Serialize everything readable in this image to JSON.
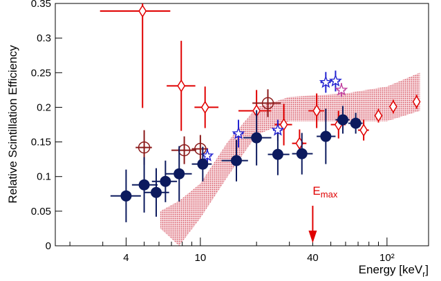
{
  "chart_data": {
    "type": "scatter",
    "ylabel": "Relative Scintillation Efficiency",
    "xlabel": {
      "main": "Energy [keV",
      "sub": "r",
      "close": "]"
    },
    "xlog": true,
    "xlim": [
      1.67,
      167
    ],
    "ylim": [
      0,
      0.35
    ],
    "xticks": [
      4,
      10,
      40,
      {
        "value": 100,
        "label": "10²"
      }
    ],
    "xminorticks": [
      2,
      3,
      5,
      6,
      7,
      8,
      9,
      20,
      30,
      50,
      60,
      70,
      80,
      90
    ],
    "yticks": [
      0,
      0.05,
      0.1,
      0.15,
      0.2,
      0.25,
      0.3,
      0.35
    ],
    "band": {
      "color": "#d03a4a",
      "x": [
        6.1,
        7.7,
        10,
        14,
        20,
        30,
        60,
        100,
        150
      ],
      "upper": [
        0.05,
        0.065,
        0.09,
        0.15,
        0.2,
        0.215,
        0.22,
        0.23,
        0.25
      ],
      "lower": [
        0.025,
        0,
        0.04,
        0.1,
        0.16,
        0.18,
        0.18,
        0.18,
        0.195
      ]
    },
    "series": [
      {
        "marker": "diamond-open",
        "color": "#e00000",
        "x": [
          4.9,
          7.9,
          10.6,
          20,
          28,
          34,
          42,
          55,
          75,
          90,
          108,
          144
        ],
        "values": [
          0.339,
          0.231,
          0.2,
          0.195,
          0.175,
          0.148,
          0.195,
          0.175,
          0.167,
          0.188,
          0.201,
          0.208
        ],
        "yerr": [
          0.14,
          0.065,
          0.03,
          0.03,
          0.03,
          0.02,
          0.025,
          0.02,
          0.015,
          0.01,
          0.01,
          0.01
        ],
        "xlow": [
          2.9,
          6.6,
          9.3,
          16,
          25,
          31,
          38,
          50,
          70,
          86,
          104,
          140
        ],
        "xhigh": [
          6.9,
          9.4,
          12.5,
          24,
          31,
          37,
          46,
          60,
          80,
          94,
          112,
          148
        ]
      },
      {
        "marker": "circle-open",
        "color": "#8b1a1a",
        "x": [
          5.0,
          8.2,
          10,
          23
        ],
        "values": [
          0.142,
          0.138,
          0.14,
          0.206
        ],
        "yerr": [
          0.025,
          0.02,
          0.02,
          0.02
        ],
        "xlow": [
          4.5,
          7,
          9,
          19
        ],
        "xhigh": [
          5.5,
          9.5,
          11,
          27
        ]
      },
      {
        "marker": "star-open",
        "color": "#2222d0",
        "x": [
          10.9,
          16,
          26,
          47,
          53
        ],
        "values": [
          0.13,
          0.162,
          0.167,
          0.236,
          0.238
        ],
        "yerr": [
          0.01,
          0.02,
          0.015,
          0.015,
          0.015
        ],
        "xlow": [
          10.3,
          15,
          24.5,
          44,
          50
        ],
        "xhigh": [
          11.5,
          17,
          27.5,
          50,
          56
        ]
      },
      {
        "marker": "star-open",
        "color": "#c040a0",
        "x": [
          57
        ],
        "values": [
          0.225
        ],
        "yerr": [
          0.01
        ],
        "xlow": [
          54
        ],
        "xhigh": [
          60
        ]
      },
      {
        "marker": "circle-filled",
        "color": "#0c1a5e",
        "x": [
          4.0,
          5.0,
          5.8,
          6.5,
          7.7,
          10.3,
          15.6,
          20,
          26,
          35,
          47,
          58,
          68
        ],
        "values": [
          0.072,
          0.088,
          0.077,
          0.093,
          0.104,
          0.118,
          0.123,
          0.156,
          0.132,
          0.133,
          0.158,
          0.182,
          0.177
        ],
        "yerr": [
          0.038,
          0.04,
          0.035,
          0.03,
          0.04,
          0.025,
          0.03,
          0.04,
          0.03,
          0.03,
          0.04,
          0.02,
          0.015
        ],
        "xlow": [
          3.3,
          4.3,
          5,
          5.5,
          6.5,
          9,
          13,
          17,
          23,
          31,
          42,
          53,
          62
        ],
        "xhigh": [
          4.8,
          5.9,
          6.8,
          7.5,
          9,
          11.5,
          18,
          24,
          30,
          40,
          53,
          63,
          74
        ]
      }
    ],
    "annotation": {
      "main": "E",
      "sub": "max",
      "x": 40,
      "color": "#e00000"
    }
  }
}
